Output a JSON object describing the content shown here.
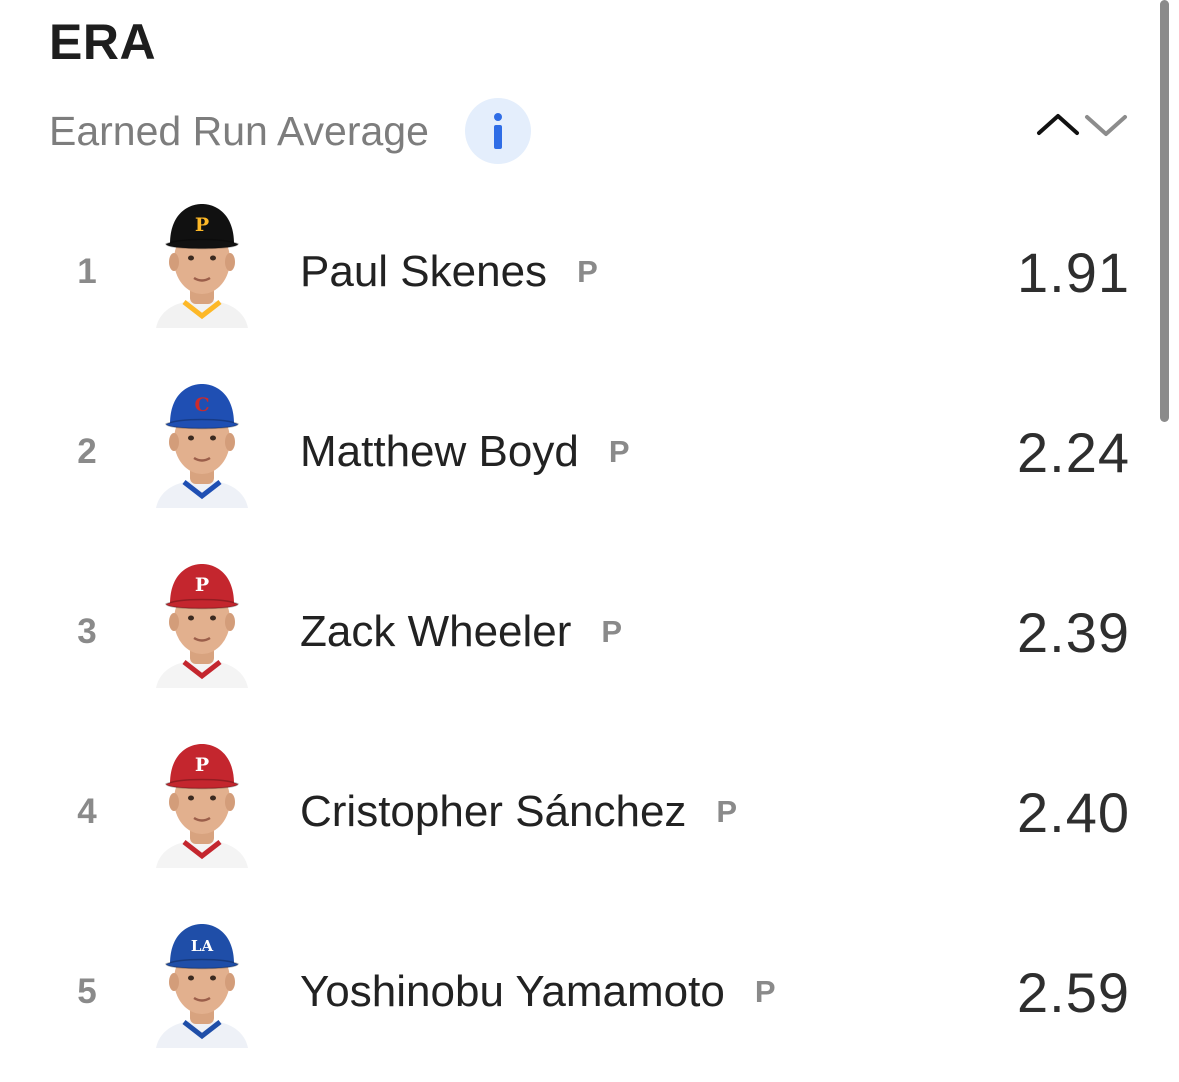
{
  "header": {
    "title": "ERA",
    "subtitle": "Earned Run Average",
    "info_icon": "info-icon",
    "sort_up_icon": "chevron-up-icon",
    "sort_down_icon": "chevron-down-icon"
  },
  "colors": {
    "title": "#1e1e1e",
    "subtitle": "#7d7d7d",
    "info_bg": "#e4eefc",
    "info_glyph": "#2f6de6",
    "rank": "#8a8a8a",
    "name": "#222222",
    "stat": "#2e2e2e"
  },
  "players": [
    {
      "rank": "1",
      "name": "Paul Skenes",
      "position": "P",
      "value": "1.91",
      "team_cap": "pirates",
      "cap_color": "#111111",
      "cap_logo": "P",
      "logo_color": "#fdb827"
    },
    {
      "rank": "2",
      "name": "Matthew Boyd",
      "position": "P",
      "value": "2.24",
      "team_cap": "cubs",
      "cap_color": "#1f4fb3",
      "cap_logo": "C",
      "logo_color": "#cc2b2b"
    },
    {
      "rank": "3",
      "name": "Zack Wheeler",
      "position": "P",
      "value": "2.39",
      "team_cap": "phillies",
      "cap_color": "#c4262e",
      "cap_logo": "P",
      "logo_color": "#ffffff"
    },
    {
      "rank": "4",
      "name": "Cristopher Sánchez",
      "position": "P",
      "value": "2.40",
      "team_cap": "phillies",
      "cap_color": "#c4262e",
      "cap_logo": "P",
      "logo_color": "#ffffff"
    },
    {
      "rank": "5",
      "name": "Yoshinobu Yamamoto",
      "position": "P",
      "value": "2.59",
      "team_cap": "dodgers",
      "cap_color": "#1f4ea8",
      "cap_logo": "LA",
      "logo_color": "#ffffff"
    }
  ]
}
